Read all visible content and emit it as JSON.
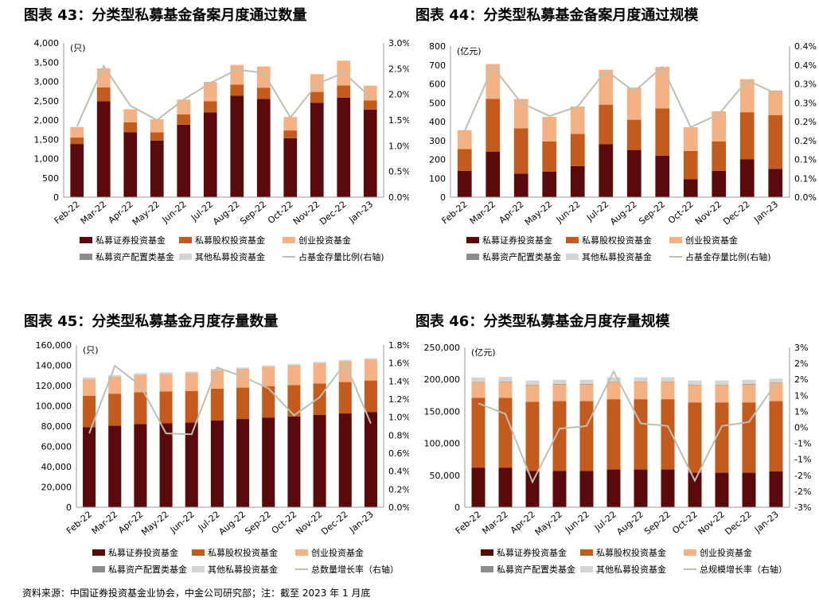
{
  "footer": {
    "source": "资料来源：中国证券投资基金业协会，中金公司研究部；注：截至 2023 年 1 月底"
  },
  "legend_colors": {
    "私募证券投资基金": "#5a0a0a",
    "私募股权投资基金": "#c35a1e",
    "创业投资基金": "#f4b183",
    "私募资产配置类基金": "#8c8c8c",
    "其他私募投资基金": "#d4d4d4",
    "line": "#bfbfb0"
  },
  "chart_data": [
    {
      "type": "bar",
      "stacked": true,
      "title": "图表 43：分类型私募基金备案月度通过数量",
      "unit_label": "(只)",
      "categories": [
        "Feb-22",
        "Mar-22",
        "Apr-22",
        "May-22",
        "Jun-22",
        "Jul-22",
        "Aug-22",
        "Sep-22",
        "Oct-22",
        "Nov-22",
        "Dec-22",
        "Jan-23"
      ],
      "y_left": {
        "min": 0,
        "max": 4000,
        "ticks": [
          "0",
          "500",
          "1,000",
          "1,500",
          "2,000",
          "2,500",
          "3,000",
          "3,500",
          "4,000"
        ]
      },
      "y_right": {
        "min": 0,
        "max": 3.0,
        "ticks": [
          "0.0%",
          "0.5%",
          "1.0%",
          "1.5%",
          "2.0%",
          "2.5%",
          "3.0%"
        ]
      },
      "series": [
        {
          "name": "私募证券投资基金",
          "values": [
            1380,
            2490,
            1680,
            1470,
            1880,
            2200,
            2630,
            2550,
            1530,
            2450,
            2580,
            2270
          ]
        },
        {
          "name": "私募股权投资基金",
          "values": [
            170,
            360,
            260,
            210,
            270,
            290,
            290,
            290,
            200,
            280,
            320,
            240
          ]
        },
        {
          "name": "创业投资基金",
          "values": [
            270,
            490,
            340,
            340,
            380,
            500,
            510,
            550,
            350,
            460,
            640,
            380
          ]
        },
        {
          "name": "私募资产配置类基金",
          "values": [
            0,
            0,
            0,
            0,
            0,
            0,
            0,
            0,
            0,
            0,
            0,
            0
          ]
        },
        {
          "name": "其他私募投资基金",
          "values": [
            0,
            0,
            0,
            0,
            0,
            0,
            0,
            0,
            0,
            0,
            0,
            0
          ]
        }
      ],
      "line": {
        "name": "占基金存量比例(右轴)",
        "values": [
          1.38,
          2.55,
          1.78,
          1.5,
          1.9,
          2.22,
          2.48,
          2.42,
          1.55,
          2.2,
          2.42,
          1.95
        ]
      },
      "legend": [
        "私募证券投资基金",
        "私募股权投资基金",
        "创业投资基金",
        "私募资产配置类基金",
        "其他私募投资基金",
        "占基金存量比例(右轴)"
      ]
    },
    {
      "type": "bar",
      "stacked": true,
      "title": "图表 44：分类型私募基金备案月度通过规模",
      "unit_label": "(亿元)",
      "categories": [
        "Feb-22",
        "Mar-22",
        "Apr-22",
        "May-22",
        "Jun-22",
        "Jul-22",
        "Aug-22",
        "Sep-22",
        "Oct-22",
        "Nov-22",
        "Dec-22",
        "Jan-23"
      ],
      "y_left": {
        "min": 0,
        "max": 800,
        "ticks": [
          "0",
          "100",
          "200",
          "300",
          "400",
          "500",
          "600",
          "700",
          "800"
        ]
      },
      "y_right": {
        "min": 0,
        "max": 0.4,
        "ticks": [
          "0.0%",
          "0.1%",
          "0.1%",
          "0.2%",
          "0.2%",
          "0.3%",
          "0.3%",
          "0.4%",
          "0.4%"
        ]
      },
      "series": [
        {
          "name": "私募证券投资基金",
          "values": [
            140,
            240,
            125,
            135,
            165,
            280,
            250,
            220,
            95,
            140,
            200,
            150
          ]
        },
        {
          "name": "私募股权投资基金",
          "values": [
            115,
            280,
            240,
            160,
            170,
            210,
            160,
            250,
            150,
            155,
            250,
            285
          ]
        },
        {
          "name": "创业投资基金",
          "values": [
            100,
            185,
            155,
            130,
            145,
            185,
            170,
            220,
            125,
            160,
            175,
            130
          ]
        },
        {
          "name": "私募资产配置类基金",
          "values": [
            0,
            0,
            0,
            0,
            0,
            0,
            0,
            0,
            0,
            0,
            0,
            0
          ]
        },
        {
          "name": "其他私募投资基金",
          "values": [
            0,
            0,
            0,
            0,
            0,
            0,
            0,
            0,
            0,
            0,
            0,
            0
          ]
        }
      ],
      "line": {
        "name": "占基金存量比例(右轴)",
        "values": [
          0.175,
          0.345,
          0.25,
          0.215,
          0.24,
          0.335,
          0.28,
          0.345,
          0.185,
          0.22,
          0.31,
          0.275
        ]
      },
      "legend": [
        "私募证券投资基金",
        "私募股权投资基金",
        "创业投资基金",
        "私募资产配置类基金",
        "其他私募投资基金",
        "占基金存量比例(右轴)"
      ]
    },
    {
      "type": "bar",
      "stacked": true,
      "title": "图表 45：分类型私募基金月度存量数量",
      "unit_label": "(只)",
      "categories": [
        "Feb-22",
        "Mar-22",
        "Apr-22",
        "May-22",
        "Jun-22",
        "Jul-22",
        "Aug-22",
        "Sep-22",
        "Oct-22",
        "Nov-22",
        "Dec-22",
        "Jan-23"
      ],
      "y_left": {
        "min": 0,
        "max": 160000,
        "ticks": [
          "0",
          "20,000",
          "40,000",
          "60,000",
          "80,000",
          "100,000",
          "120,000",
          "140,000",
          "160,000"
        ]
      },
      "y_right": {
        "min": 0,
        "max": 1.8,
        "ticks": [
          "0.0%",
          "0.2%",
          "0.4%",
          "0.6%",
          "0.8%",
          "1.0%",
          "1.2%",
          "1.4%",
          "1.6%",
          "1.8%"
        ]
      },
      "series": [
        {
          "name": "私募证券投资基金",
          "values": [
            79000,
            80500,
            82000,
            82800,
            83500,
            85500,
            87000,
            88500,
            89500,
            91000,
            92500,
            94000
          ]
        },
        {
          "name": "私募股权投资基金",
          "values": [
            31000,
            31500,
            31500,
            31500,
            31000,
            31500,
            31000,
            31000,
            31000,
            31000,
            31000,
            31000
          ]
        },
        {
          "name": "创业投资基金",
          "values": [
            16000,
            16500,
            16800,
            17000,
            17500,
            17800,
            18200,
            18700,
            19200,
            19800,
            20300,
            20500
          ]
        },
        {
          "name": "私募资产配置类基金",
          "values": [
            200,
            200,
            200,
            200,
            200,
            200,
            200,
            200,
            200,
            200,
            200,
            200
          ]
        },
        {
          "name": "其他私募投资基金",
          "values": [
            1800,
            1700,
            1700,
            1600,
            1600,
            1500,
            1500,
            1500,
            1400,
            1400,
            1400,
            1300
          ]
        }
      ],
      "line": {
        "name": "总数量增长率（右轴）",
        "values": [
          0.82,
          1.57,
          1.35,
          0.82,
          0.81,
          1.55,
          1.45,
          1.32,
          1.02,
          1.22,
          1.6,
          0.93
        ]
      },
      "legend": [
        "私募证券投资基金",
        "私募股权投资基金",
        "创业投资基金",
        "私募资产配置类基金",
        "其他私募投资基金",
        "总数量增长率（右轴）"
      ]
    },
    {
      "type": "bar",
      "stacked": true,
      "title": "图表 46：分类型私募基金月度存量规模",
      "unit_label": "(亿元)",
      "categories": [
        "Feb-22",
        "Mar-22",
        "Apr-22",
        "May-22",
        "Jun-22",
        "Jul-22",
        "Aug-22",
        "Sep-22",
        "Oct-22",
        "Nov-22",
        "Dec-22",
        "Jan-23"
      ],
      "y_left": {
        "min": 0,
        "max": 250000,
        "ticks": [
          "0",
          "50,000",
          "100,000",
          "150,000",
          "200,000",
          "250,000"
        ]
      },
      "y_right": {
        "min": -3,
        "max": 3,
        "ticks": [
          "-3%",
          "-2%",
          "-2%",
          "-1%",
          "-1%",
          "0%",
          "1%",
          "1%",
          "2%",
          "2%",
          "3%"
        ]
      },
      "series": [
        {
          "name": "私募证券投资基金",
          "values": [
            62000,
            62000,
            57000,
            57000,
            57000,
            59000,
            59000,
            59000,
            54000,
            54000,
            54000,
            56000
          ]
        },
        {
          "name": "私募股权投资基金",
          "values": [
            109000,
            109000,
            108000,
            109000,
            109000,
            110000,
            110000,
            110000,
            110000,
            110000,
            110000,
            110000
          ]
        },
        {
          "name": "创业投资基金",
          "values": [
            24000,
            25000,
            26000,
            26000,
            26000,
            27000,
            27000,
            27000,
            27000,
            27000,
            28000,
            28000
          ]
        },
        {
          "name": "私募资产配置类基金",
          "values": [
            800,
            800,
            800,
            800,
            800,
            800,
            800,
            800,
            800,
            800,
            800,
            800
          ]
        },
        {
          "name": "其他私募投资基金",
          "values": [
            7200,
            7200,
            6500,
            6500,
            6500,
            6500,
            6500,
            6500,
            6500,
            6500,
            6500,
            6500
          ]
        }
      ],
      "line": {
        "name": "总规模增长率（右轴）",
        "values": [
          0.9,
          0.5,
          -2.05,
          -0.05,
          0.05,
          2.1,
          0.15,
          0.05,
          -2.0,
          0.05,
          0.2,
          1.65
        ]
      },
      "legend": [
        "私募证券投资基金",
        "私募股权投资基金",
        "创业投资基金",
        "私募资产配置类基金",
        "其他私募投资基金",
        "总规模增长率（右轴）"
      ]
    }
  ]
}
